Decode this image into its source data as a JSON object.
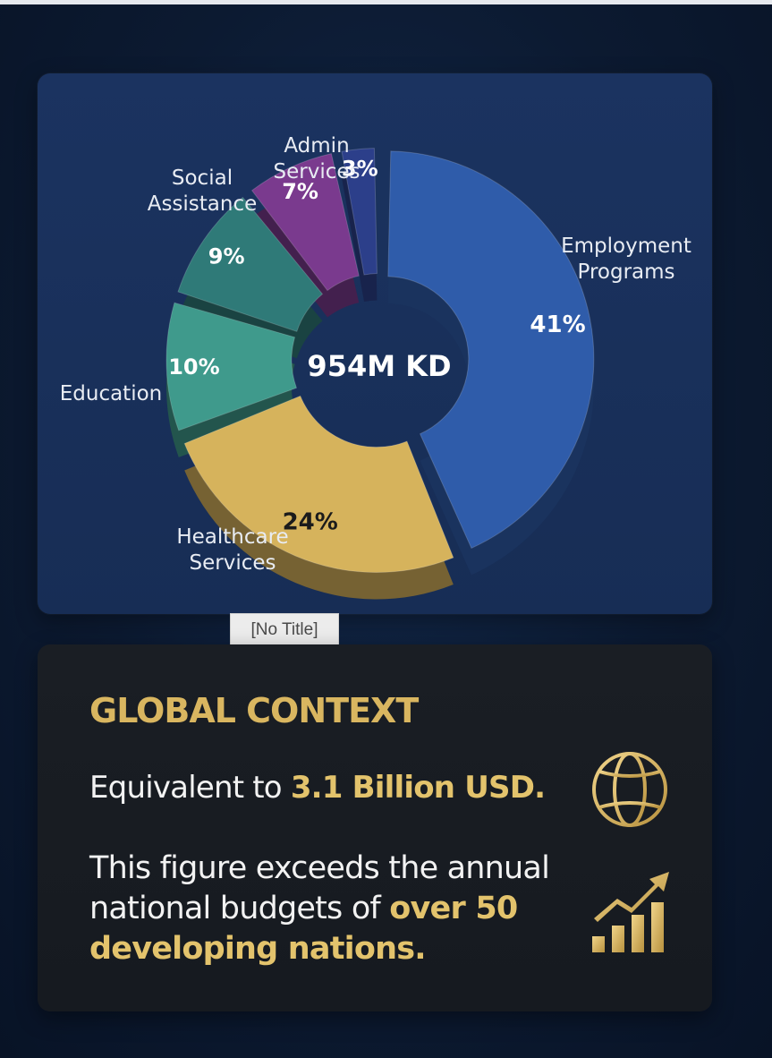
{
  "chart_data": {
    "type": "pie",
    "center_label": "954M KD",
    "slices": [
      {
        "label": "Employment Programs",
        "value": 41,
        "value_label": "41%",
        "color": "#2f5caa"
      },
      {
        "label": "Healthcare Services",
        "value": 24,
        "value_label": "24%",
        "color": "#d6b35c"
      },
      {
        "label": "Education",
        "value": 10,
        "value_label": "10%",
        "color": "#3f9a8c"
      },
      {
        "label": "",
        "value": 9,
        "value_label": "9%",
        "color": "#2f7a78"
      },
      {
        "label": "Social Assistance",
        "value": 7,
        "value_label": "7%",
        "color": "#7a3a8e"
      },
      {
        "label": "Admin Services",
        "value": 3,
        "value_label": "3%",
        "color": "#2c3f8a"
      }
    ]
  },
  "tooltip": {
    "text": "[No Title]"
  },
  "context": {
    "title": "GLOBAL CONTEXT",
    "line1_prefix": "Equivalent to ",
    "line1_highlight": "3.1 Billion USD.",
    "para_prefix": "This figure exceeds the annual national budgets of ",
    "para_highlight": "over 50 developing nations.",
    "icons": [
      "globe-icon",
      "growth-chart-icon"
    ],
    "accent_color": "#d9b660"
  }
}
